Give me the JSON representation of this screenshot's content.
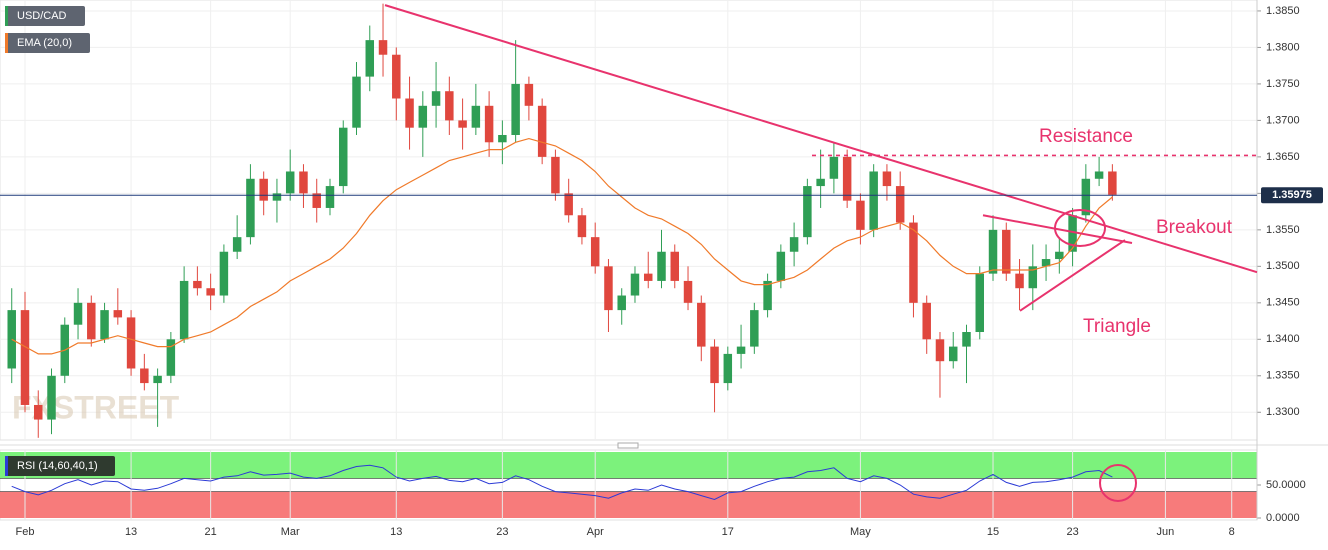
{
  "chart_data": [
    {
      "type": "candlestick",
      "name": "USD/CAD",
      "watermark": "FXSTREET",
      "categories": [
        null,
        "Feb",
        null,
        null,
        null,
        null,
        null,
        null,
        null,
        "13",
        null,
        null,
        null,
        null,
        null,
        "21",
        null,
        null,
        null,
        null,
        null,
        "Mar",
        null,
        null,
        null,
        null,
        null,
        null,
        null,
        "13",
        null,
        null,
        null,
        null,
        null,
        null,
        null,
        "23",
        null,
        null,
        null,
        null,
        null,
        null,
        "Apr",
        null,
        null,
        null,
        null,
        null,
        null,
        null,
        null,
        null,
        "17",
        null,
        null,
        null,
        null,
        null,
        null,
        null,
        null,
        null,
        "May",
        null,
        null,
        null,
        null,
        null,
        null,
        null,
        null,
        null,
        "15",
        null,
        null,
        null,
        null,
        null,
        "23",
        null,
        null,
        null,
        null,
        null,
        null,
        "Jun",
        null,
        null,
        null,
        null,
        "8",
        null
      ],
      "open": [
        1.336,
        1.344,
        1.331,
        1.329,
        1.335,
        1.342,
        1.345,
        1.34,
        1.344,
        1.343,
        1.336,
        1.334,
        1.335,
        1.34,
        1.348,
        1.347,
        1.346,
        1.352,
        1.354,
        1.362,
        1.359,
        1.36,
        1.363,
        1.36,
        1.358,
        1.361,
        1.369,
        1.376,
        1.381,
        1.379,
        1.373,
        1.369,
        1.372,
        1.374,
        1.37,
        1.369,
        1.372,
        1.367,
        1.368,
        1.375,
        1.372,
        1.365,
        1.36,
        1.357,
        1.354,
        1.35,
        1.344,
        1.346,
        1.349,
        1.348,
        1.352,
        1.348,
        1.345,
        1.339,
        1.334,
        1.338,
        1.339,
        1.344,
        1.348,
        1.352,
        1.354,
        1.361,
        1.362,
        1.365,
        1.359,
        1.355,
        1.363,
        1.361,
        1.356,
        1.345,
        1.34,
        1.337,
        1.339,
        1.341,
        1.349,
        1.355,
        1.349,
        1.347,
        1.35,
        1.351,
        1.352,
        1.357,
        1.362,
        1.363,
        null,
        null,
        null,
        null,
        null,
        null,
        null,
        null,
        null,
        null
      ],
      "high": [
        1.347,
        1.3465,
        1.333,
        1.336,
        1.343,
        1.347,
        1.346,
        1.345,
        1.347,
        1.344,
        1.338,
        1.336,
        1.341,
        1.35,
        1.35,
        1.349,
        1.353,
        1.357,
        1.364,
        1.363,
        1.362,
        1.366,
        1.364,
        1.362,
        1.362,
        1.37,
        1.378,
        1.383,
        1.386,
        1.38,
        1.376,
        1.374,
        1.378,
        1.376,
        1.373,
        1.375,
        1.374,
        1.37,
        1.381,
        1.376,
        1.373,
        1.366,
        1.362,
        1.358,
        1.356,
        1.351,
        1.347,
        1.35,
        1.352,
        1.355,
        1.353,
        1.35,
        1.346,
        1.34,
        1.339,
        1.342,
        1.345,
        1.349,
        1.353,
        1.356,
        1.362,
        1.366,
        1.367,
        1.366,
        1.36,
        1.364,
        1.364,
        1.363,
        1.357,
        1.346,
        1.341,
        1.341,
        1.342,
        1.35,
        1.357,
        1.356,
        1.351,
        1.353,
        1.353,
        1.354,
        1.358,
        1.364,
        1.365,
        1.364,
        null,
        null,
        null,
        null,
        null,
        null,
        null,
        null,
        null,
        null
      ],
      "low": [
        1.334,
        1.33,
        1.3265,
        1.327,
        1.334,
        1.34,
        1.339,
        1.3395,
        1.342,
        1.335,
        1.333,
        1.328,
        1.334,
        1.3395,
        1.346,
        1.344,
        1.345,
        1.351,
        1.353,
        1.357,
        1.356,
        1.359,
        1.358,
        1.356,
        1.357,
        1.36,
        1.368,
        1.374,
        1.376,
        1.37,
        1.366,
        1.365,
        1.369,
        1.368,
        1.366,
        1.368,
        1.365,
        1.364,
        1.367,
        1.37,
        1.364,
        1.359,
        1.356,
        1.353,
        1.349,
        1.341,
        1.342,
        1.345,
        1.347,
        1.347,
        1.347,
        1.344,
        1.337,
        1.33,
        1.333,
        1.336,
        1.338,
        1.343,
        1.347,
        1.35,
        1.353,
        1.358,
        1.36,
        1.358,
        1.353,
        1.354,
        1.359,
        1.355,
        1.343,
        1.338,
        1.332,
        1.336,
        1.334,
        1.34,
        1.348,
        1.348,
        1.344,
        1.344,
        1.348,
        1.349,
        1.35,
        1.356,
        1.361,
        1.359,
        null,
        null,
        null,
        null,
        null,
        null,
        null,
        null,
        null,
        null
      ],
      "close": [
        1.344,
        1.331,
        1.329,
        1.335,
        1.342,
        1.345,
        1.34,
        1.344,
        1.343,
        1.336,
        1.334,
        1.335,
        1.34,
        1.348,
        1.347,
        1.346,
        1.352,
        1.354,
        1.362,
        1.359,
        1.36,
        1.363,
        1.36,
        1.358,
        1.361,
        1.369,
        1.376,
        1.381,
        1.379,
        1.373,
        1.369,
        1.372,
        1.374,
        1.37,
        1.369,
        1.372,
        1.367,
        1.368,
        1.375,
        1.372,
        1.365,
        1.36,
        1.357,
        1.354,
        1.35,
        1.344,
        1.346,
        1.349,
        1.348,
        1.352,
        1.348,
        1.345,
        1.339,
        1.334,
        1.338,
        1.339,
        1.344,
        1.348,
        1.352,
        1.354,
        1.361,
        1.362,
        1.365,
        1.359,
        1.355,
        1.363,
        1.361,
        1.356,
        1.345,
        1.34,
        1.337,
        1.339,
        1.341,
        1.349,
        1.355,
        1.349,
        1.347,
        1.35,
        1.351,
        1.352,
        1.357,
        1.362,
        1.363,
        1.3598,
        null,
        null,
        null,
        null,
        null,
        null,
        null,
        null,
        null,
        null
      ],
      "up_color": "#2f9e55",
      "down_color": "#e0473e",
      "overlays": [
        {
          "name": "EMA (20,0)",
          "color": "#f07a2a",
          "values": [
            1.34,
            1.339,
            1.338,
            1.338,
            1.3385,
            1.3395,
            1.3395,
            1.34,
            1.3405,
            1.34,
            1.3395,
            1.339,
            1.339,
            1.34,
            1.3405,
            1.341,
            1.342,
            1.343,
            1.3445,
            1.3455,
            1.3465,
            1.348,
            1.349,
            1.35,
            1.351,
            1.3525,
            1.3545,
            1.357,
            1.359,
            1.3605,
            1.3615,
            1.3625,
            1.3635,
            1.3645,
            1.365,
            1.3655,
            1.366,
            1.366,
            1.367,
            1.3675,
            1.367,
            1.3665,
            1.3655,
            1.3645,
            1.363,
            1.361,
            1.3595,
            1.358,
            1.357,
            1.3565,
            1.3555,
            1.3545,
            1.353,
            1.351,
            1.3495,
            1.348,
            1.3475,
            1.3475,
            1.348,
            1.3485,
            1.3495,
            1.351,
            1.3525,
            1.3535,
            1.354,
            1.355,
            1.3555,
            1.356,
            1.355,
            1.3535,
            1.3515,
            1.35,
            1.349,
            1.349,
            1.3495,
            1.3495,
            1.3495,
            1.3495,
            1.35,
            1.3505,
            1.3525,
            1.3555,
            1.358,
            1.3595,
            null,
            null,
            null,
            null,
            null,
            null,
            null,
            null,
            null,
            null
          ]
        }
      ],
      "ylim": [
        1.3262,
        1.3865
      ],
      "yticks": [
        {
          "value": 1.385,
          "label": "1.3850"
        },
        {
          "value": 1.38,
          "label": "1.3800"
        },
        {
          "value": 1.375,
          "label": "1.3750"
        },
        {
          "value": 1.37,
          "label": "1.3700"
        },
        {
          "value": 1.365,
          "label": "1.3650"
        },
        {
          "value": 1.36,
          "label": "1.3600"
        },
        {
          "value": 1.355,
          "label": "1.3550"
        },
        {
          "value": 1.35,
          "label": "1.3500"
        },
        {
          "value": 1.345,
          "label": "1.3450"
        },
        {
          "value": 1.34,
          "label": "1.3400"
        },
        {
          "value": 1.335,
          "label": "1.3350"
        },
        {
          "value": 1.33,
          "label": "1.3300"
        }
      ],
      "grid": true,
      "last_price": 1.35975,
      "resistance_level": 1.3652,
      "downtrend": [
        1.3858,
        1.3492
      ],
      "triangle_upper": [
        1.357,
        1.3532
      ],
      "triangle_lower": [
        1.3439,
        1.3536
      ],
      "annotations": [
        {
          "text": "Resistance"
        },
        {
          "text": "Breakout"
        },
        {
          "text": "Triangle"
        }
      ],
      "annotation_color": "#e8336d"
    },
    {
      "type": "rsi",
      "name": "RSI (14,60,40,1)",
      "color": "#2b3ad6",
      "values": [
        48,
        40,
        35,
        42,
        52,
        58,
        50,
        56,
        55,
        44,
        42,
        45,
        52,
        60,
        58,
        56,
        62,
        64,
        70,
        65,
        66,
        68,
        62,
        60,
        64,
        72,
        78,
        80,
        76,
        62,
        56,
        60,
        63,
        57,
        55,
        60,
        52,
        54,
        64,
        58,
        48,
        40,
        38,
        36,
        34,
        30,
        38,
        44,
        42,
        50,
        44,
        40,
        34,
        28,
        38,
        40,
        48,
        55,
        60,
        62,
        70,
        72,
        76,
        60,
        55,
        64,
        60,
        50,
        36,
        32,
        30,
        36,
        42,
        56,
        66,
        54,
        48,
        54,
        55,
        58,
        62,
        70,
        72,
        62,
        null,
        null,
        null,
        null,
        null,
        null,
        null,
        null,
        null,
        null
      ],
      "ylim": [
        0,
        100
      ],
      "upper": 60,
      "lower": 40,
      "yticks": [
        {
          "value": 50,
          "label": "50.0000"
        },
        {
          "value": 0,
          "label": "0.0000"
        }
      ]
    }
  ]
}
